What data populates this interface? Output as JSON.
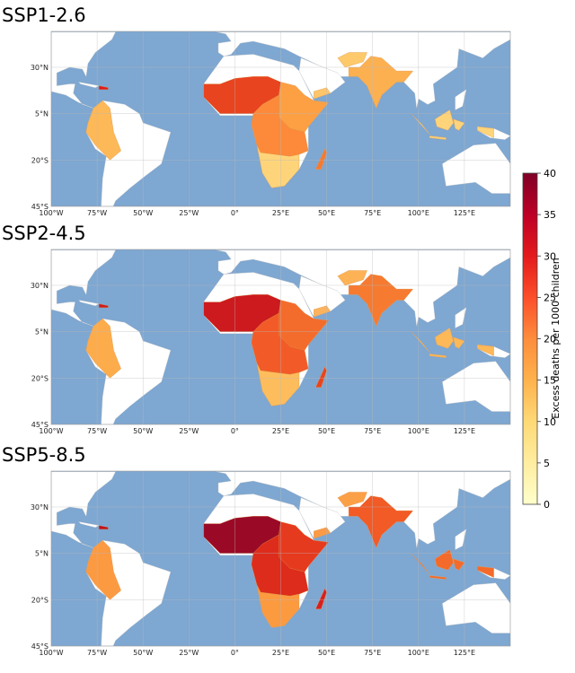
{
  "panels": [
    {
      "title": "SSP1-2.6"
    },
    {
      "title": "SSP2-4.5"
    },
    {
      "title": "SSP5-8.5"
    }
  ],
  "lat_ticks": [
    {
      "value": 30,
      "label": "30°N"
    },
    {
      "value": 5,
      "label": "5°N"
    },
    {
      "value": -20,
      "label": "20°S"
    },
    {
      "value": -45,
      "label": "45°S"
    }
  ],
  "lon_ticks": [
    {
      "value": -100,
      "label": "100°W"
    },
    {
      "value": -75,
      "label": "75°W"
    },
    {
      "value": -50,
      "label": "50°W"
    },
    {
      "value": -25,
      "label": "25°W"
    },
    {
      "value": 0,
      "label": "0°"
    },
    {
      "value": 25,
      "label": "25°E"
    },
    {
      "value": 50,
      "label": "50°E"
    },
    {
      "value": 75,
      "label": "75°E"
    },
    {
      "value": 100,
      "label": "100°E"
    },
    {
      "value": 125,
      "label": "125°E"
    }
  ],
  "colorbar": {
    "label": "Excess deaths per 1000 children",
    "lim": [
      0,
      40
    ],
    "ticks": [
      0,
      5,
      10,
      15,
      20,
      25,
      30,
      35,
      40
    ]
  }
}
